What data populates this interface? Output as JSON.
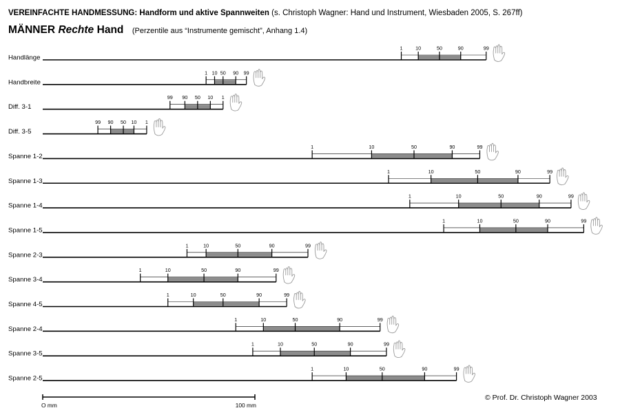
{
  "header": {
    "title_bold": "VEREINFACHTE HANDMESSUNG: Handform und aktive Spannweiten",
    "title_rest": "(s. Christoph Wagner: Hand und Instrument, Wiesbaden 2005, S. 267ff)",
    "gender": "MÄNNER",
    "hand_side": "Rechte",
    "hand_word": "Hand",
    "subtitle": "(Perzentile aus “Instrumente gemischt”, Anhang 1.4)"
  },
  "footer": {
    "copyright": "© Prof. Dr. Christoph Wagner 2003"
  },
  "chart_data": {
    "type": "range-bar",
    "unit": "mm",
    "description_labels": [
      "1",
      "10",
      "50",
      "90",
      "99"
    ],
    "scale": {
      "start_label": "O mm",
      "end_label": "100 mm",
      "start_mm": 0,
      "end_mm": 100
    },
    "series": [
      {
        "name": "Handlänge",
        "ticks": [
          {
            "label": "1",
            "mm": 169
          },
          {
            "label": "10",
            "mm": 177
          },
          {
            "label": "50",
            "mm": 187
          },
          {
            "label": "90",
            "mm": 197
          },
          {
            "label": "99",
            "mm": 209
          }
        ]
      },
      {
        "name": "Handbreite",
        "ticks": [
          {
            "label": "1",
            "mm": 77
          },
          {
            "label": "10",
            "mm": 81
          },
          {
            "label": "50",
            "mm": 85
          },
          {
            "label": "90",
            "mm": 91
          },
          {
            "label": "99",
            "mm": 96
          }
        ]
      },
      {
        "name": "Diff. 3-1",
        "ticks": [
          {
            "label": "99",
            "mm": 60
          },
          {
            "label": "90",
            "mm": 67
          },
          {
            "label": "50",
            "mm": 73
          },
          {
            "label": "10",
            "mm": 79
          },
          {
            "label": "1",
            "mm": 85
          }
        ]
      },
      {
        "name": "Diff. 3-5",
        "ticks": [
          {
            "label": "99",
            "mm": 26
          },
          {
            "label": "90",
            "mm": 32
          },
          {
            "label": "50",
            "mm": 38
          },
          {
            "label": "10",
            "mm": 43
          },
          {
            "label": "1",
            "mm": 49
          }
        ]
      },
      {
        "name": "Spanne 1-2",
        "ticks": [
          {
            "label": "1",
            "mm": 127
          },
          {
            "label": "10",
            "mm": 155
          },
          {
            "label": "50",
            "mm": 175
          },
          {
            "label": "90",
            "mm": 193
          },
          {
            "label": "99",
            "mm": 206
          }
        ]
      },
      {
        "name": "Spanne 1-3",
        "ticks": [
          {
            "label": "1",
            "mm": 163
          },
          {
            "label": "10",
            "mm": 183
          },
          {
            "label": "50",
            "mm": 205
          },
          {
            "label": "90",
            "mm": 224
          },
          {
            "label": "99",
            "mm": 239
          }
        ]
      },
      {
        "name": "Spanne 1-4",
        "ticks": [
          {
            "label": "1",
            "mm": 173
          },
          {
            "label": "10",
            "mm": 196
          },
          {
            "label": "50",
            "mm": 216
          },
          {
            "label": "90",
            "mm": 234
          },
          {
            "label": "99",
            "mm": 249
          }
        ]
      },
      {
        "name": "Spanne 1-5",
        "ticks": [
          {
            "label": "1",
            "mm": 189
          },
          {
            "label": "10",
            "mm": 206
          },
          {
            "label": "50",
            "mm": 223
          },
          {
            "label": "90",
            "mm": 238
          },
          {
            "label": "99",
            "mm": 255
          }
        ]
      },
      {
        "name": "Spanne 2-3",
        "ticks": [
          {
            "label": "1",
            "mm": 68
          },
          {
            "label": "10",
            "mm": 77
          },
          {
            "label": "50",
            "mm": 92
          },
          {
            "label": "90",
            "mm": 108
          },
          {
            "label": "99",
            "mm": 125
          }
        ]
      },
      {
        "name": "Spanne 3-4",
        "ticks": [
          {
            "label": "1",
            "mm": 46
          },
          {
            "label": "10",
            "mm": 59
          },
          {
            "label": "50",
            "mm": 76
          },
          {
            "label": "90",
            "mm": 92
          },
          {
            "label": "99",
            "mm": 110
          }
        ]
      },
      {
        "name": "Spanne 4-5",
        "ticks": [
          {
            "label": "1",
            "mm": 59
          },
          {
            "label": "10",
            "mm": 71
          },
          {
            "label": "50",
            "mm": 85
          },
          {
            "label": "90",
            "mm": 102
          },
          {
            "label": "99",
            "mm": 115
          }
        ]
      },
      {
        "name": "Spanne 2-4",
        "ticks": [
          {
            "label": "1",
            "mm": 91
          },
          {
            "label": "10",
            "mm": 104
          },
          {
            "label": "50",
            "mm": 119
          },
          {
            "label": "90",
            "mm": 140
          },
          {
            "label": "99",
            "mm": 159
          }
        ]
      },
      {
        "name": "Spanne 3-5",
        "ticks": [
          {
            "label": "1",
            "mm": 99
          },
          {
            "label": "10",
            "mm": 112
          },
          {
            "label": "50",
            "mm": 128
          },
          {
            "label": "90",
            "mm": 145
          },
          {
            "label": "99",
            "mm": 162
          }
        ]
      },
      {
        "name": "Spanne 2-5",
        "ticks": [
          {
            "label": "1",
            "mm": 127
          },
          {
            "label": "10",
            "mm": 143
          },
          {
            "label": "50",
            "mm": 160
          },
          {
            "label": "90",
            "mm": 180
          },
          {
            "label": "99",
            "mm": 195
          }
        ]
      }
    ],
    "colors": {
      "line": "#000000",
      "bar": "#8c8c8c",
      "icon": "#9a9a9a"
    }
  }
}
